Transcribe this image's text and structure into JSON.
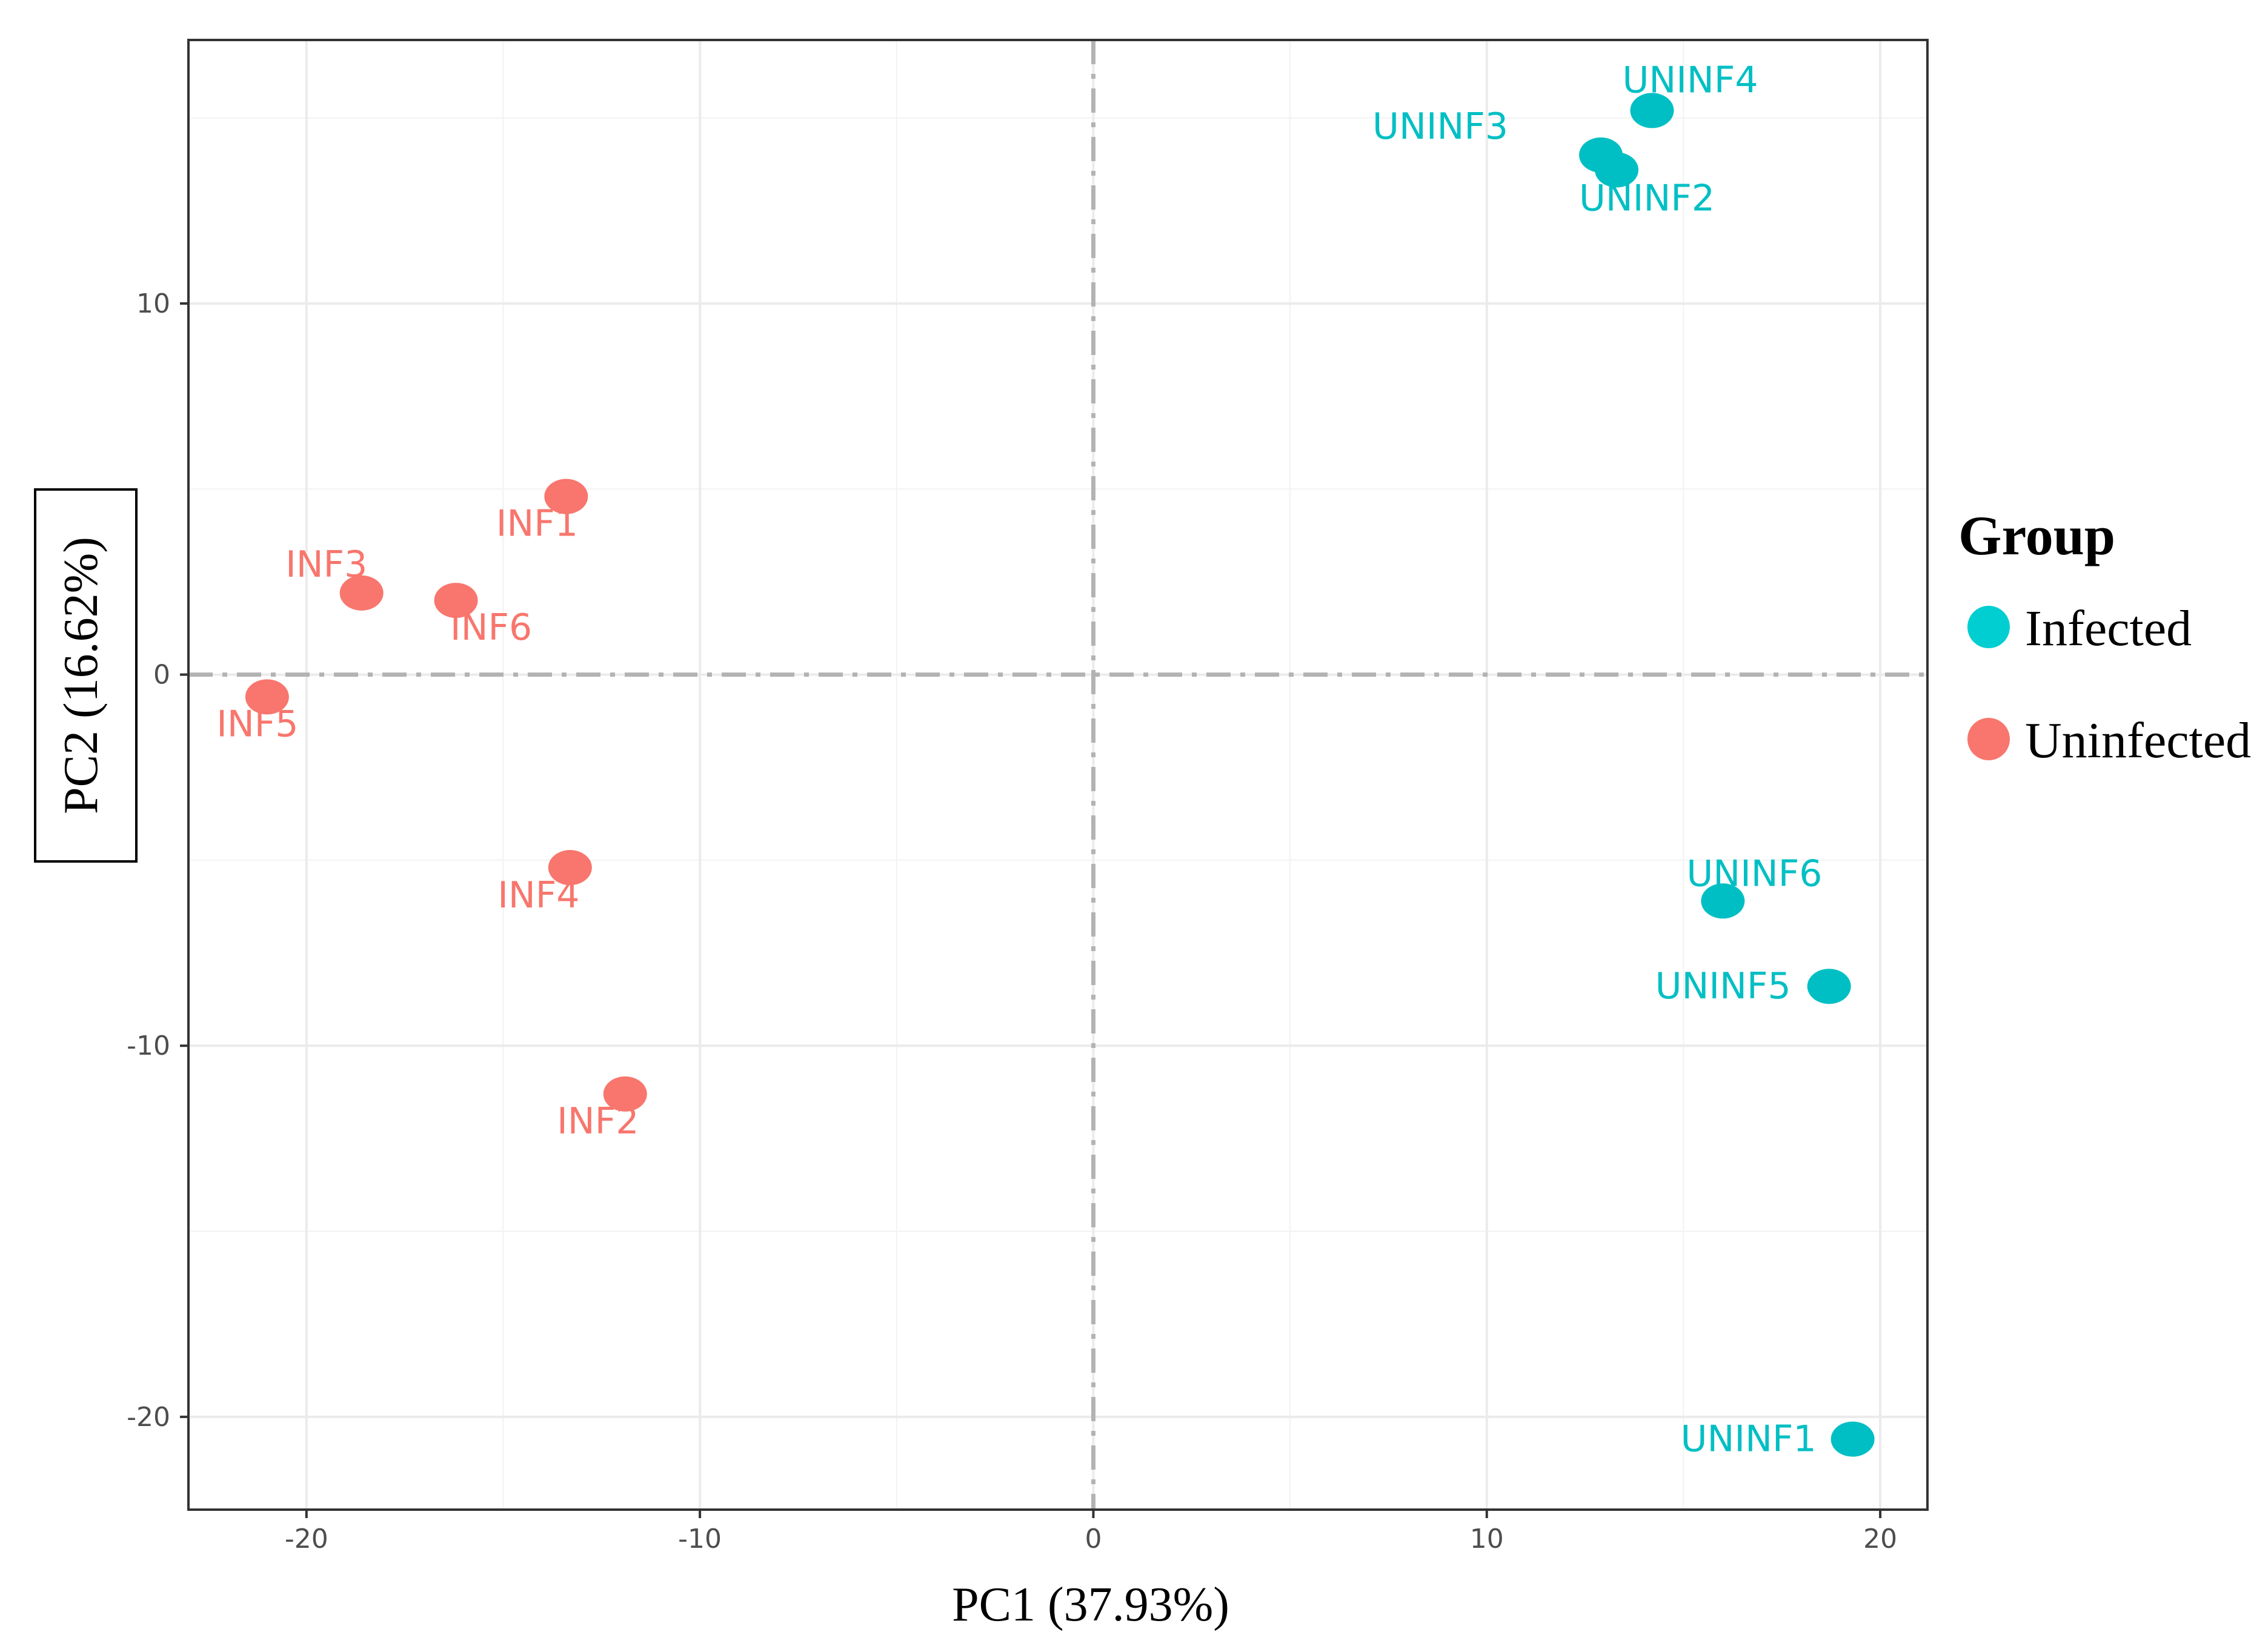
{
  "chart_data": {
    "type": "scatter",
    "title": "",
    "xlabel": "PC1 (37.93%)",
    "ylabel": "PC2 (16.62%)",
    "xlim": [
      -23,
      21.2
    ],
    "ylim": [
      -22.5,
      17.1
    ],
    "x_ticks": [
      -20,
      -10,
      0,
      10,
      20
    ],
    "y_ticks": [
      10,
      0,
      -10,
      -20
    ],
    "x_tick_labels": [
      "-20",
      "-10",
      "0",
      "10",
      "20"
    ],
    "y_tick_labels": [
      "10",
      "0",
      "-10",
      "-20"
    ],
    "grid": true,
    "legend": {
      "title": "Group",
      "position": "right",
      "entries": [
        {
          "name": "Infected",
          "color": "#00CED1"
        },
        {
          "name": "Uninfected",
          "color": "#F8766D"
        }
      ]
    },
    "series": [
      {
        "name": "Uninfected",
        "color": "#F8766D",
        "points": [
          {
            "label": "INF1",
            "x": -13.4,
            "y": 4.8
          },
          {
            "label": "INF2",
            "x": -11.9,
            "y": -11.3
          },
          {
            "label": "INF3",
            "x": -18.6,
            "y": 2.2
          },
          {
            "label": "INF4",
            "x": -13.3,
            "y": -5.2
          },
          {
            "label": "INF5",
            "x": -21.0,
            "y": -0.6
          },
          {
            "label": "INF6",
            "x": -16.2,
            "y": 2.0
          }
        ]
      },
      {
        "name": "Infected",
        "color": "#00BFC4",
        "points": [
          {
            "label": "UNINF1",
            "x": 19.3,
            "y": -20.6
          },
          {
            "label": "UNINF2",
            "x": 13.3,
            "y": 13.6
          },
          {
            "label": "UNINF3",
            "x": 12.9,
            "y": 14.0
          },
          {
            "label": "UNINF4",
            "x": 14.2,
            "y": 15.2
          },
          {
            "label": "UNINF5",
            "x": 18.7,
            "y": -8.4
          },
          {
            "label": "UNINF6",
            "x": 16.0,
            "y": -6.1
          }
        ]
      }
    ]
  }
}
